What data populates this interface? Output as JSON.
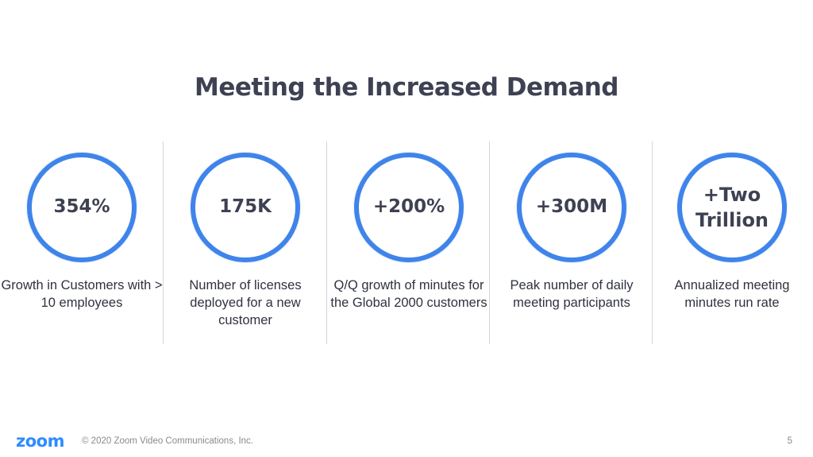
{
  "slide": {
    "title": "Meeting the Increased Demand"
  },
  "stats": [
    {
      "value": "354%",
      "description": "Growth in Customers with > 10 employees"
    },
    {
      "value": "175K",
      "description": "Number of licenses deployed for a new customer"
    },
    {
      "value": "+200%",
      "description": "Q/Q growth of minutes for the Global 2000 customers"
    },
    {
      "value": "+300M",
      "description": "Peak number of daily meeting participants"
    },
    {
      "value": "+Two Trillion",
      "description": "Annualized meeting minutes run rate"
    }
  ],
  "footer": {
    "logo": "zoom",
    "copyright": "© 2020 Zoom Video Communications, Inc.",
    "page_number": "5"
  },
  "colors": {
    "accent_ring": "#3f84ea",
    "brand_blue": "#2d8cff",
    "title_text": "#3e4152"
  }
}
